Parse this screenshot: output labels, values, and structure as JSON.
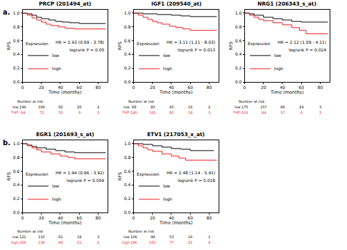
{
  "chart_data": [
    {
      "type": "line",
      "line_style": "step",
      "panel_label": "a.",
      "title": "PRCP (201494_at)",
      "xlabel": "Time (months)",
      "ylabel": "RFS",
      "xlim": [
        0,
        90
      ],
      "xticks": [
        0,
        20,
        40,
        60,
        80
      ],
      "ylim": [
        0,
        1.05
      ],
      "yticks": [
        {
          "value": 0,
          "label": "0.0"
        },
        {
          "value": 0.2,
          "label": "0.2"
        },
        {
          "value": 0.4,
          "label": "0.4"
        },
        {
          "value": 0.6,
          "label": "0.6"
        },
        {
          "value": 0.8,
          "label": "0.8"
        },
        {
          "value": 1,
          "label": "1.0"
        }
      ],
      "grid": false,
      "legend": "lower left",
      "legend_title": "Expression",
      "series": [
        {
          "name": "low",
          "color": "#000000",
          "x": [
            0,
            5,
            10,
            15,
            20,
            28,
            35,
            42,
            50,
            60,
            88
          ],
          "values": [
            1,
            0.99,
            0.97,
            0.94,
            0.92,
            0.9,
            0.88,
            0.87,
            0.86,
            0.85,
            0.85
          ]
        },
        {
          "name": "high",
          "color": "#e8191c",
          "x": [
            0,
            5,
            10,
            15,
            20,
            25,
            30,
            38,
            45,
            55,
            88
          ],
          "values": [
            1,
            0.97,
            0.93,
            0.9,
            0.87,
            0.84,
            0.82,
            0.8,
            0.78,
            0.77,
            0.77
          ]
        }
      ],
      "annotations": [
        "HR = 1.93 (0.99 - 3.78)",
        "logrank P = 0.05"
      ],
      "risk_table": {
        "title": "Number at risk",
        "times": [
          0,
          20,
          40,
          60,
          80
        ],
        "rows": [
          {
            "name": "low",
            "values": [
              194,
              169,
              92,
              26,
              2
            ]
          },
          {
            "name": "high",
            "values": [
              84,
              72,
              33,
              9,
              3
            ]
          }
        ]
      }
    },
    {
      "type": "line",
      "line_style": "step",
      "title": "IGF1 (209540_at)",
      "xlabel": "Time (months)",
      "ylabel": "RFS",
      "xlim": [
        0,
        90
      ],
      "xticks": [
        0,
        20,
        40,
        60,
        80
      ],
      "ylim": [
        0,
        1.05
      ],
      "yticks": [
        {
          "value": 0,
          "label": "0.0"
        },
        {
          "value": 0.2,
          "label": "0.2"
        },
        {
          "value": 0.4,
          "label": "0.4"
        },
        {
          "value": 0.6,
          "label": "0.6"
        },
        {
          "value": 0.8,
          "label": "0.8"
        },
        {
          "value": 1,
          "label": "1.0"
        }
      ],
      "grid": false,
      "legend": "lower left",
      "legend_title": "Expression",
      "series": [
        {
          "name": "low",
          "color": "#000000",
          "x": [
            0,
            10,
            25,
            40,
            50,
            60,
            88
          ],
          "values": [
            1,
            0.99,
            0.98,
            0.97,
            0.96,
            0.95,
            0.95
          ]
        },
        {
          "name": "high",
          "color": "#e8191c",
          "x": [
            0,
            5,
            10,
            15,
            20,
            25,
            30,
            38,
            45,
            52,
            60,
            88
          ],
          "values": [
            1,
            0.97,
            0.94,
            0.91,
            0.88,
            0.86,
            0.84,
            0.81,
            0.79,
            0.77,
            0.75,
            0.75
          ]
        }
      ],
      "annotations": [
        "HR = 3.11 (1.21 - 8.03)",
        "logrank P = 0.013"
      ],
      "risk_table": {
        "title": "Number at risk",
        "times": [
          0,
          20,
          40,
          60,
          80
        ],
        "rows": [
          {
            "name": "low",
            "values": [
              88,
              80,
              45,
              16,
              2
            ]
          },
          {
            "name": "high",
            "values": [
              190,
              161,
              80,
              19,
              3
            ]
          }
        ]
      }
    },
    {
      "type": "line",
      "line_style": "step",
      "title": "NRG1 (206343_s_at)",
      "xlabel": "Time (months)",
      "ylabel": "RFS",
      "xlim": [
        0,
        90
      ],
      "xticks": [
        0,
        20,
        40,
        60,
        80
      ],
      "ylim": [
        0,
        1.05
      ],
      "yticks": [
        {
          "value": 0,
          "label": "0.0"
        },
        {
          "value": 0.2,
          "label": "0.2"
        },
        {
          "value": 0.4,
          "label": "0.4"
        },
        {
          "value": 0.6,
          "label": "0.6"
        },
        {
          "value": 0.8,
          "label": "0.8"
        },
        {
          "value": 1,
          "label": "1.0"
        }
      ],
      "grid": false,
      "legend": "lower left",
      "legend_title": "Expression",
      "series": [
        {
          "name": "low",
          "color": "#000000",
          "x": [
            0,
            5,
            10,
            20,
            30,
            40,
            50,
            60,
            88
          ],
          "values": [
            1,
            0.99,
            0.97,
            0.94,
            0.92,
            0.9,
            0.88,
            0.87,
            0.87
          ]
        },
        {
          "name": "high",
          "color": "#e8191c",
          "x": [
            0,
            5,
            10,
            15,
            20,
            30,
            40,
            50,
            58,
            65,
            88
          ],
          "values": [
            1,
            0.97,
            0.94,
            0.91,
            0.89,
            0.86,
            0.83,
            0.79,
            0.75,
            0.7,
            0.7
          ]
        }
      ],
      "annotations": [
        "HR = 2.12 (1.09 - 4.11)",
        "logrank P = 0.024"
      ],
      "risk_table": {
        "title": "Number at risk",
        "times": [
          0,
          20,
          40,
          60,
          80
        ],
        "rows": [
          {
            "name": "low",
            "values": [
              175,
              157,
              88,
              29,
              3
            ]
          },
          {
            "name": "high",
            "values": [
              103,
              84,
              37,
              6,
              2
            ]
          }
        ]
      }
    },
    {
      "type": "line",
      "line_style": "step",
      "panel_label": "b.",
      "title": "EGR1 (201693_s_at)",
      "xlabel": "Time (months)",
      "ylabel": "RFS",
      "xlim": [
        0,
        90
      ],
      "xticks": [
        0,
        20,
        40,
        60,
        80
      ],
      "ylim": [
        0,
        1.05
      ],
      "yticks": [
        {
          "value": 0,
          "label": "0.0"
        },
        {
          "value": 0.2,
          "label": "0.2"
        },
        {
          "value": 0.4,
          "label": "0.4"
        },
        {
          "value": 0.6,
          "label": "0.6"
        },
        {
          "value": 0.8,
          "label": "0.8"
        },
        {
          "value": 1,
          "label": "1.0"
        }
      ],
      "grid": false,
      "legend": "lower left",
      "legend_title": "Expression",
      "series": [
        {
          "name": "low",
          "color": "#000000",
          "x": [
            0,
            5,
            10,
            15,
            25,
            35,
            45,
            55,
            88
          ],
          "values": [
            1,
            0.98,
            0.96,
            0.94,
            0.92,
            0.9,
            0.88,
            0.87,
            0.87
          ]
        },
        {
          "name": "high",
          "color": "#e8191c",
          "x": [
            0,
            5,
            10,
            15,
            20,
            30,
            40,
            48,
            55,
            88
          ],
          "values": [
            1,
            0.97,
            0.94,
            0.91,
            0.88,
            0.85,
            0.82,
            0.8,
            0.78,
            0.78
          ]
        }
      ],
      "annotations": [
        "HR = 1.94 (0.96 - 3.92)",
        "logrank P = 0.059"
      ],
      "risk_table": {
        "title": "Number at risk",
        "times": [
          0,
          20,
          40,
          60,
          80
        ],
        "rows": [
          {
            "name": "low",
            "values": [
              121,
              110,
              61,
              18,
              3
            ]
          },
          {
            "name": "high",
            "values": [
              169,
              139,
              68,
              21,
              2
            ]
          }
        ]
      }
    },
    {
      "type": "line",
      "line_style": "step",
      "title": "ETV1 (217053_x_at)",
      "xlabel": "Time (months)",
      "ylabel": "RFS",
      "xlim": [
        0,
        90
      ],
      "xticks": [
        0,
        20,
        40,
        60,
        80
      ],
      "ylim": [
        0,
        1.05
      ],
      "yticks": [
        {
          "value": 0,
          "label": "0.0"
        },
        {
          "value": 0.2,
          "label": "0.2"
        },
        {
          "value": 0.4,
          "label": "0.4"
        },
        {
          "value": 0.6,
          "label": "0.6"
        },
        {
          "value": 0.8,
          "label": "0.8"
        },
        {
          "value": 1,
          "label": "1.0"
        }
      ],
      "grid": false,
      "legend": "lower left",
      "legend_title": "Expression",
      "series": [
        {
          "name": "low",
          "color": "#000000",
          "x": [
            0,
            10,
            20,
            30,
            40,
            50,
            60,
            85
          ],
          "values": [
            1,
            0.99,
            0.97,
            0.95,
            0.93,
            0.92,
            0.9,
            0.9
          ]
        },
        {
          "name": "high",
          "color": "#e8191c",
          "x": [
            0,
            5,
            10,
            15,
            20,
            30,
            40,
            48,
            55,
            88
          ],
          "values": [
            1,
            0.97,
            0.94,
            0.91,
            0.89,
            0.85,
            0.82,
            0.79,
            0.76,
            0.76
          ]
        }
      ],
      "annotations": [
        "HR = 2.48 (1.14 - 5.41)",
        "logrank P = 0.018"
      ],
      "risk_table": {
        "title": "Number at risk",
        "times": [
          0,
          20,
          40,
          60,
          80
        ],
        "rows": [
          {
            "name": "low",
            "values": [
              106,
              98,
              53,
              16,
              1
            ]
          },
          {
            "name": "high",
            "values": [
              186,
              151,
              77,
              21,
              4
            ]
          }
        ]
      }
    }
  ]
}
